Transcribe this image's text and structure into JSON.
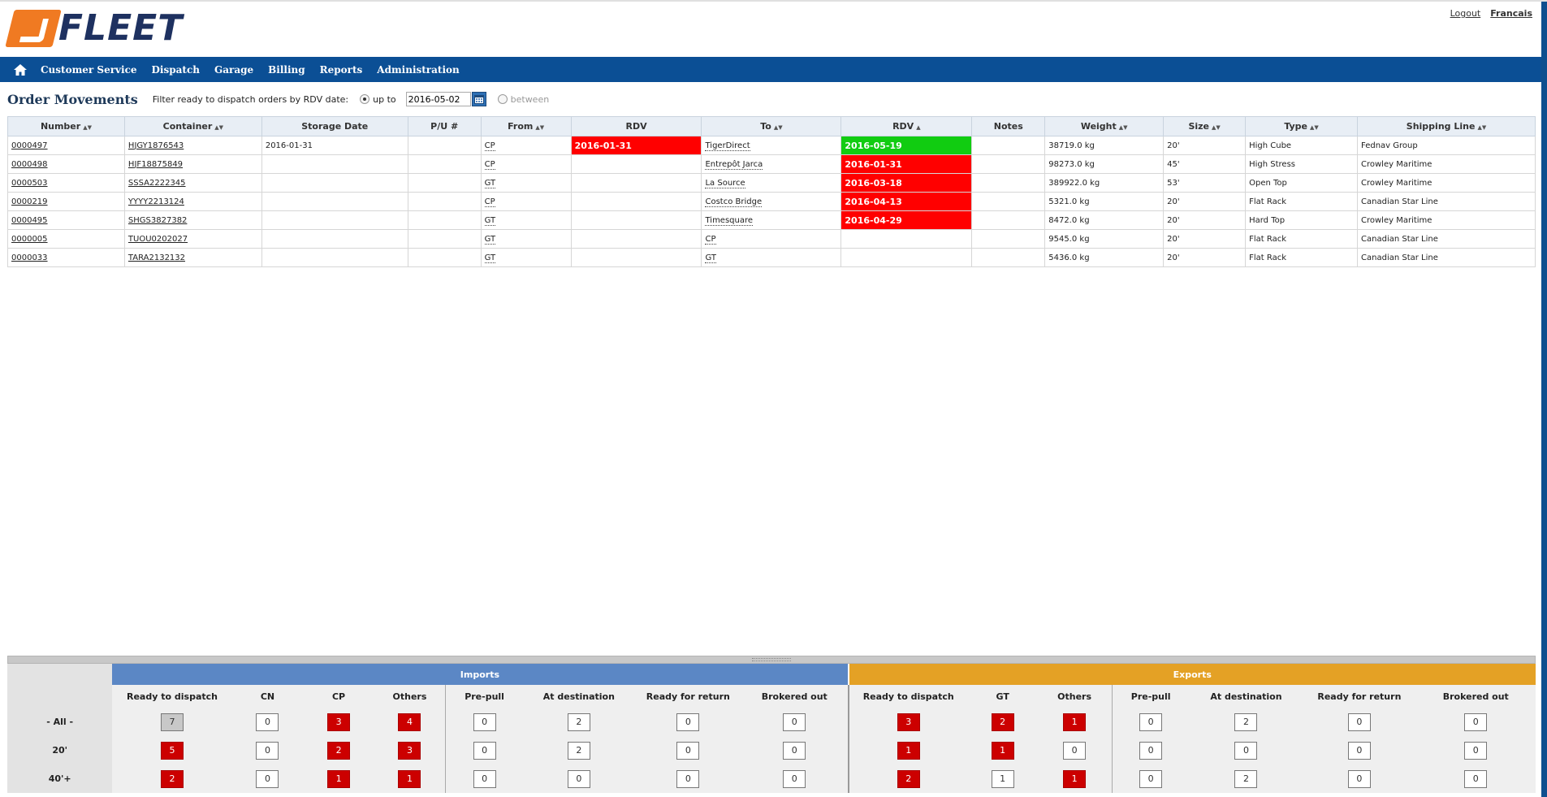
{
  "brand": {
    "logo_text": "FLEET"
  },
  "top_links": {
    "logout": "Logout",
    "language": "Francais"
  },
  "nav": {
    "items": [
      "Customer Service",
      "Dispatch",
      "Garage",
      "Billing",
      "Reports",
      "Administration"
    ]
  },
  "page": {
    "title": "Order Movements",
    "filter_label": "Filter ready to dispatch orders by RDV date:",
    "option_up_to": "up to",
    "date_value": "2016-05-02",
    "option_between": "between"
  },
  "orders": {
    "headers": [
      "Number",
      "Container",
      "Storage Date",
      "P/U #",
      "From",
      "RDV",
      "To",
      "RDV",
      "Notes",
      "Weight",
      "Size",
      "Type",
      "Shipping Line"
    ],
    "rows": [
      {
        "number": "0000497",
        "container": "HJGY1876543",
        "storage": "2016-01-31",
        "pu": "",
        "from": "CP",
        "rdv1": "2016-01-31",
        "rdv1_status": "red",
        "to": "TigerDirect",
        "rdv2": "2016-05-19",
        "rdv2_status": "green",
        "notes": "",
        "weight": "38719.0 kg",
        "size": "20'",
        "type": "High Cube",
        "line": "Fednav Group"
      },
      {
        "number": "0000498",
        "container": "HJF18875849",
        "storage": "",
        "pu": "",
        "from": "CP",
        "rdv1": "",
        "rdv1_status": "",
        "to": "Entrepôt Jarca",
        "rdv2": "2016-01-31",
        "rdv2_status": "red",
        "notes": "",
        "weight": "98273.0 kg",
        "size": "45'",
        "type": "High Stress",
        "line": "Crowley Maritime"
      },
      {
        "number": "0000503",
        "container": "SSSA2222345",
        "storage": "",
        "pu": "",
        "from": "GT",
        "rdv1": "",
        "rdv1_status": "",
        "to": "La Source",
        "rdv2": "2016-03-18",
        "rdv2_status": "red",
        "notes": "",
        "weight": "389922.0 kg",
        "size": "53'",
        "type": "Open Top",
        "line": "Crowley Maritime"
      },
      {
        "number": "0000219",
        "container": "YYYY2213124",
        "storage": "",
        "pu": "",
        "from": "CP",
        "rdv1": "",
        "rdv1_status": "",
        "to": "Costco Bridge",
        "rdv2": "2016-04-13",
        "rdv2_status": "red",
        "notes": "",
        "weight": "5321.0 kg",
        "size": "20'",
        "type": "Flat Rack",
        "line": "Canadian Star Line"
      },
      {
        "number": "0000495",
        "container": "SHGS3827382",
        "storage": "",
        "pu": "",
        "from": "GT",
        "rdv1": "",
        "rdv1_status": "",
        "to": "Timesquare",
        "rdv2": "2016-04-29",
        "rdv2_status": "red",
        "notes": "",
        "weight": "8472.0 kg",
        "size": "20'",
        "type": "Hard Top",
        "line": "Crowley Maritime"
      },
      {
        "number": "0000005",
        "container": "TUOU0202027",
        "storage": "",
        "pu": "",
        "from": "GT",
        "rdv1": "",
        "rdv1_status": "",
        "to": "CP",
        "rdv2": "",
        "rdv2_status": "",
        "notes": "",
        "weight": "9545.0 kg",
        "size": "20'",
        "type": "Flat Rack",
        "line": "Canadian Star Line"
      },
      {
        "number": "0000033",
        "container": "TARA2132132",
        "storage": "",
        "pu": "",
        "from": "GT",
        "rdv1": "",
        "rdv1_status": "",
        "to": "GT",
        "rdv2": "",
        "rdv2_status": "",
        "notes": "",
        "weight": "5436.0 kg",
        "size": "20'",
        "type": "Flat Rack",
        "line": "Canadian Star Line"
      }
    ]
  },
  "summary": {
    "imports_title": "Imports",
    "exports_title": "Exports",
    "columns": [
      "Ready to dispatch",
      "CN",
      "CP",
      "Others",
      "Pre-pull",
      "At destination",
      "Ready for return",
      "Brokered out",
      "Ready to dispatch",
      "GT",
      "Others",
      "Pre-pull",
      "At destination",
      "Ready for return",
      "Brokered out"
    ],
    "rows": [
      {
        "label": "- All -",
        "values": [
          "7",
          "0",
          "3",
          "4",
          "0",
          "2",
          "0",
          "0",
          "3",
          "2",
          "1",
          "0",
          "2",
          "0",
          "0"
        ],
        "styles": [
          "grey",
          "",
          "red",
          "red",
          "",
          "",
          "",
          "",
          "red",
          "red",
          "red",
          "",
          "",
          "",
          ""
        ]
      },
      {
        "label": "20'",
        "values": [
          "5",
          "0",
          "2",
          "3",
          "0",
          "2",
          "0",
          "0",
          "1",
          "1",
          "0",
          "0",
          "0",
          "0",
          "0"
        ],
        "styles": [
          "red",
          "",
          "red",
          "red",
          "",
          "",
          "",
          "",
          "red",
          "red",
          "",
          "",
          "",
          "",
          ""
        ]
      },
      {
        "label": "40'+",
        "values": [
          "2",
          "0",
          "1",
          "1",
          "0",
          "0",
          "0",
          "0",
          "2",
          "1",
          "1",
          "0",
          "2",
          "0",
          "0"
        ],
        "styles": [
          "red",
          "",
          "red",
          "red",
          "",
          "",
          "",
          "",
          "red",
          "",
          "red",
          "",
          "",
          "",
          ""
        ]
      }
    ]
  },
  "colors": {
    "nav": "#0b4f95",
    "imports": "#5b87c5",
    "exports": "#e4a125",
    "alert": "#ff0000",
    "ok": "#11cc11"
  },
  "icons": {
    "home": "home-icon",
    "calendar": "calendar-icon",
    "sort": "sort-icon"
  }
}
